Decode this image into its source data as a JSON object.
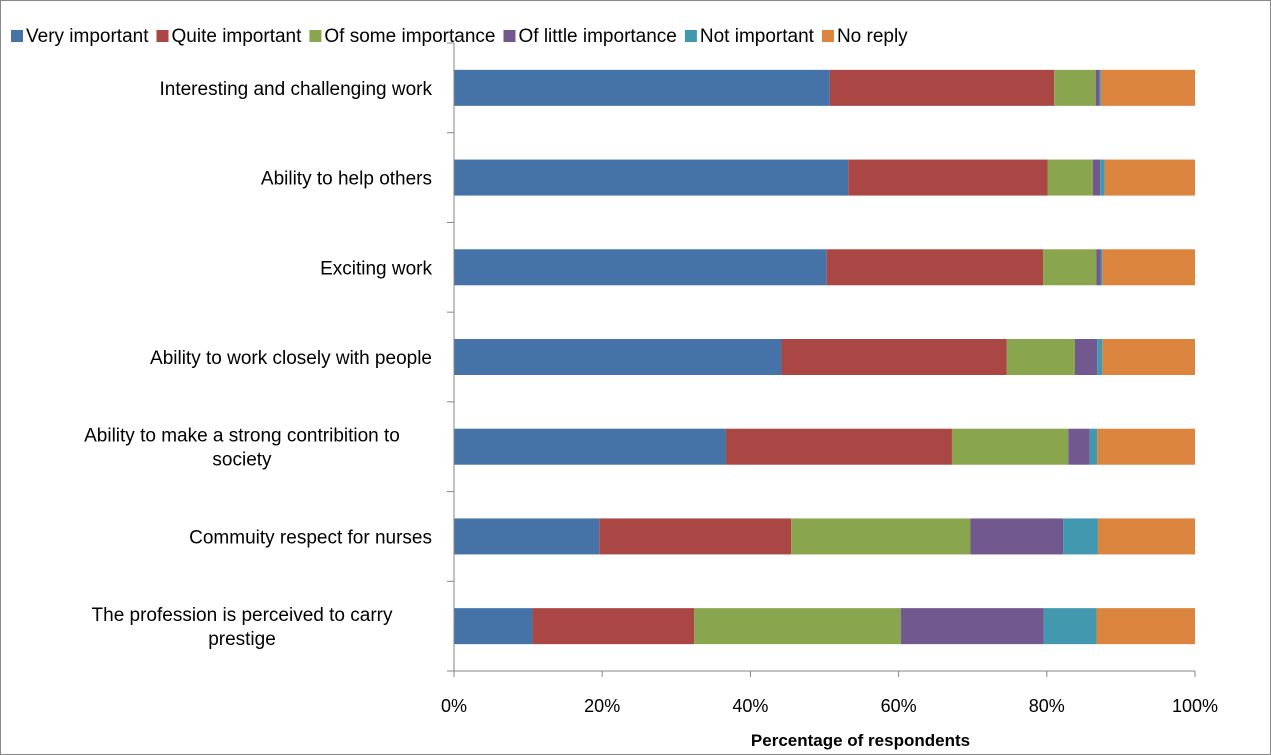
{
  "chart_data": {
    "type": "bar",
    "orientation": "horizontal",
    "stacked": "percent",
    "categories": [
      "Interesting and challenging work",
      "Ability to help others",
      "Exciting work",
      "Ability to work closely with people",
      "Ability to make a strong contribition to society",
      "Commuity respect for nurses",
      "The profession is perceived to carry prestige"
    ],
    "category_lines": [
      [
        "Interesting and challenging work"
      ],
      [
        "Ability to help others"
      ],
      [
        "Exciting work"
      ],
      [
        "Ability to work closely with people"
      ],
      [
        "Ability to make a strong contribition to",
        "society"
      ],
      [
        "Commuity respect for nurses"
      ],
      [
        "The profession is perceived to carry",
        "prestige"
      ]
    ],
    "series": [
      {
        "name": "Very important",
        "color": "#4572A7",
        "values": [
          50.7,
          53.2,
          50.3,
          44.2,
          36.7,
          19.6,
          10.6
        ]
      },
      {
        "name": "Quite important",
        "color": "#AA4643",
        "values": [
          30.3,
          26.9,
          29.2,
          30.4,
          30.5,
          25.9,
          21.8
        ]
      },
      {
        "name": "Of some importance",
        "color": "#89A54E",
        "values": [
          5.6,
          6.1,
          7.2,
          9.2,
          15.7,
          24.2,
          27.9
        ]
      },
      {
        "name": "Of little importance",
        "color": "#71588F",
        "values": [
          0.5,
          1.0,
          0.6,
          3.0,
          2.9,
          12.5,
          19.3
        ]
      },
      {
        "name": "Not important",
        "color": "#4198AF",
        "values": [
          0.2,
          0.6,
          0.2,
          0.7,
          1.0,
          4.7,
          7.1
        ]
      },
      {
        "name": "No reply",
        "color": "#DB843D",
        "values": [
          12.7,
          12.2,
          12.5,
          12.5,
          13.2,
          13.1,
          13.3
        ]
      }
    ],
    "xlabel": "Percentage of respondents",
    "ylabel": "",
    "xlim": [
      0,
      100
    ],
    "xticks": [
      "0%",
      "20%",
      "40%",
      "60%",
      "80%",
      "100%"
    ],
    "legend_position": "top",
    "grid": false
  }
}
